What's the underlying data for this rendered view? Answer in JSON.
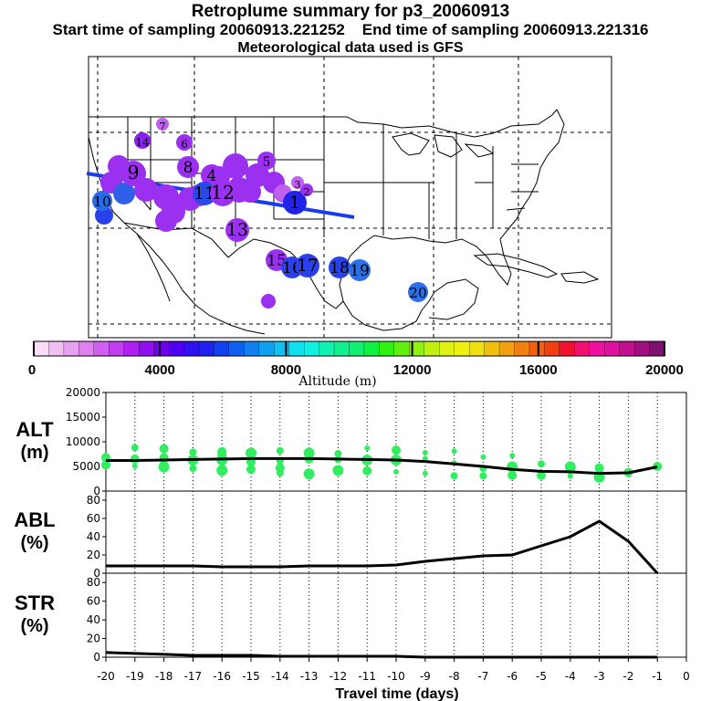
{
  "title": "Retroplume summary for p3_20060913",
  "subtitle_start": "Start time of sampling 20060913.221252",
  "subtitle_end": "End time of sampling 20060913.221316",
  "subtitle_met": "Meteorological data used is GFS",
  "colorbar": {
    "label": "Altitude (m)",
    "ticks": [
      "0",
      "4000",
      "8000",
      "12000",
      "16000",
      "20000"
    ],
    "min": 0,
    "max": 20000,
    "colors": [
      "#f8dcf8",
      "#f0c0f0",
      "#e8a0f0",
      "#e080f0",
      "#d060f0",
      "#c040f0",
      "#b020f0",
      "#9010f0",
      "#7000f0",
      "#5000f0",
      "#3010f0",
      "#2020f0",
      "#1040f0",
      "#1060f0",
      "#1080f0",
      "#10a0f0",
      "#10c0f0",
      "#10e0f0",
      "#10f0e0",
      "#10f0b0",
      "#10f090",
      "#10f070",
      "#10f040",
      "#30f010",
      "#60f010",
      "#90f010",
      "#c0f010",
      "#e0f010",
      "#f0f010",
      "#f0e010",
      "#f0c010",
      "#f0a010",
      "#f08010",
      "#f06010",
      "#f04010",
      "#f01030",
      "#f01070",
      "#f010a0",
      "#e010a0",
      "#c01090",
      "#a01080",
      "#801070"
    ]
  },
  "map": {
    "markers": [
      {
        "label": "1",
        "color": "#2222e8",
        "size": 22
      },
      {
        "label": "2",
        "color": "#9b30f0",
        "size": 10
      },
      {
        "label": "3",
        "color": "#c060f0",
        "size": 10
      },
      {
        "label": "4",
        "color": "#9b30f0",
        "size": 20
      },
      {
        "label": "5",
        "color": "#9b30f0",
        "size": 16
      },
      {
        "label": "6",
        "color": "#9b30f0",
        "size": 14
      },
      {
        "label": "7",
        "color": "#c060f0",
        "size": 10
      },
      {
        "label": "8",
        "color": "#9b30f0",
        "size": 20
      },
      {
        "label": "9",
        "color": "#9b30f0",
        "size": 24
      },
      {
        "label": "10",
        "color": "#2a6ae8",
        "size": 18
      },
      {
        "label": "11",
        "color": "#2a4ae8",
        "size": 22
      },
      {
        "label": "12",
        "color": "#9b30f0",
        "size": 24
      },
      {
        "label": "13",
        "color": "#9b30f0",
        "size": 22
      },
      {
        "label": "14",
        "color": "#8a20f0",
        "size": 14
      },
      {
        "label": "15",
        "color": "#9b30f0",
        "size": 20
      },
      {
        "label": "16",
        "color": "#3040e8",
        "size": 20
      },
      {
        "label": "17",
        "color": "#2a40e8",
        "size": 22
      },
      {
        "label": "18",
        "color": "#2a40e8",
        "size": 20
      },
      {
        "label": "19",
        "color": "#2a70e8",
        "size": 20
      },
      {
        "label": "20",
        "color": "#2a70e8",
        "size": 18
      }
    ]
  },
  "chart_data": [
    {
      "type": "scatter",
      "panel": "ALT",
      "ylabel": "ALT",
      "yunit": "(m)",
      "ylim": [
        0,
        20000
      ],
      "yticks": [
        0,
        5000,
        10000,
        15000,
        20000
      ],
      "xlim": [
        -20,
        0
      ],
      "mean_line": {
        "x": [
          -20,
          -19,
          -18,
          -17,
          -16,
          -15,
          -14,
          -13,
          -12,
          -11,
          -10,
          -9,
          -8,
          -7,
          -6,
          -5,
          -4,
          -3,
          -2,
          -1
        ],
        "y": [
          6200,
          6200,
          6300,
          6400,
          6500,
          6600,
          6600,
          6600,
          6500,
          6400,
          6300,
          6000,
          5500,
          5000,
          4400,
          4000,
          3900,
          3600,
          3700,
          4900
        ]
      },
      "points": [
        [
          -20,
          6800
        ],
        [
          -20,
          5300
        ],
        [
          -19,
          8800
        ],
        [
          -19,
          6500
        ],
        [
          -19,
          5100
        ],
        [
          -18,
          8600
        ],
        [
          -18,
          6800
        ],
        [
          -18,
          5300
        ],
        [
          -18,
          4900
        ],
        [
          -17,
          7900
        ],
        [
          -17,
          6300
        ],
        [
          -17,
          4600
        ],
        [
          -16,
          8000
        ],
        [
          -16,
          7400
        ],
        [
          -16,
          6300
        ],
        [
          -16,
          4200
        ],
        [
          -15,
          7700
        ],
        [
          -15,
          5900
        ],
        [
          -15,
          4400
        ],
        [
          -14,
          8200
        ],
        [
          -14,
          6100
        ],
        [
          -14,
          4700
        ],
        [
          -14,
          3700
        ],
        [
          -13,
          7700
        ],
        [
          -13,
          6500
        ],
        [
          -13,
          3500
        ],
        [
          -12,
          7600
        ],
        [
          -12,
          6400
        ],
        [
          -12,
          4200
        ],
        [
          -11,
          8700
        ],
        [
          -11,
          6300
        ],
        [
          -11,
          4100
        ],
        [
          -10,
          8300
        ],
        [
          -10,
          6300
        ],
        [
          -10,
          3900
        ],
        [
          -9,
          7800
        ],
        [
          -9,
          6600
        ],
        [
          -9,
          3600
        ],
        [
          -8,
          8100
        ],
        [
          -8,
          5700
        ],
        [
          -8,
          3100
        ],
        [
          -7,
          6900
        ],
        [
          -7,
          4600
        ],
        [
          -7,
          3100
        ],
        [
          -6,
          7200
        ],
        [
          -6,
          4900
        ],
        [
          -6,
          3200
        ],
        [
          -5,
          5500
        ],
        [
          -5,
          3200
        ],
        [
          -5,
          3000
        ],
        [
          -4,
          4900
        ],
        [
          -4,
          3900
        ],
        [
          -4,
          3000
        ],
        [
          -3,
          4700
        ],
        [
          -3,
          3700
        ],
        [
          -3,
          2800
        ],
        [
          -2,
          3800
        ],
        [
          -2,
          3300
        ],
        [
          -1,
          5000
        ]
      ]
    },
    {
      "type": "line",
      "panel": "ABL",
      "ylabel": "ABL",
      "yunit": "(%)",
      "ylim": [
        0,
        90
      ],
      "yticks": [
        0,
        20,
        40,
        60,
        80
      ],
      "xlim": [
        -20,
        0
      ],
      "x": [
        -20,
        -19,
        -18,
        -17,
        -16,
        -15,
        -14,
        -13,
        -12,
        -11,
        -10,
        -9,
        -8,
        -7,
        -6,
        -5,
        -4,
        -3,
        -2,
        -1
      ],
      "values": [
        8,
        8,
        8,
        8,
        7,
        7,
        7,
        8,
        8,
        8,
        9,
        13,
        16,
        19,
        20,
        30,
        40,
        57,
        35,
        0
      ]
    },
    {
      "type": "line",
      "panel": "STR",
      "ylabel": "STR",
      "yunit": "(%)",
      "ylim": [
        0,
        90
      ],
      "yticks": [
        0,
        20,
        40,
        60,
        80
      ],
      "xlim": [
        -20,
        0
      ],
      "x": [
        -20,
        -19,
        -18,
        -17,
        -16,
        -15,
        -14,
        -13,
        -12,
        -11,
        -10,
        -9,
        -8,
        -7,
        -6,
        -5,
        -4,
        -3,
        -2,
        -1
      ],
      "values": [
        5,
        4,
        3,
        2,
        2,
        2,
        1,
        1,
        1,
        1,
        1,
        0,
        0,
        0,
        0,
        0,
        0,
        0,
        0,
        0
      ]
    }
  ],
  "xaxis": {
    "label": "Travel time (days)",
    "ticks": [
      "-20",
      "-19",
      "-18",
      "-17",
      "-16",
      "-15",
      "-14",
      "-13",
      "-12",
      "-11",
      "-10",
      "-9",
      "-8",
      "-7",
      "-6",
      "-5",
      "-4",
      "-3",
      "-2",
      "-1",
      "0"
    ]
  },
  "colors": {
    "point": "#30ee60",
    "line": "#000000"
  }
}
